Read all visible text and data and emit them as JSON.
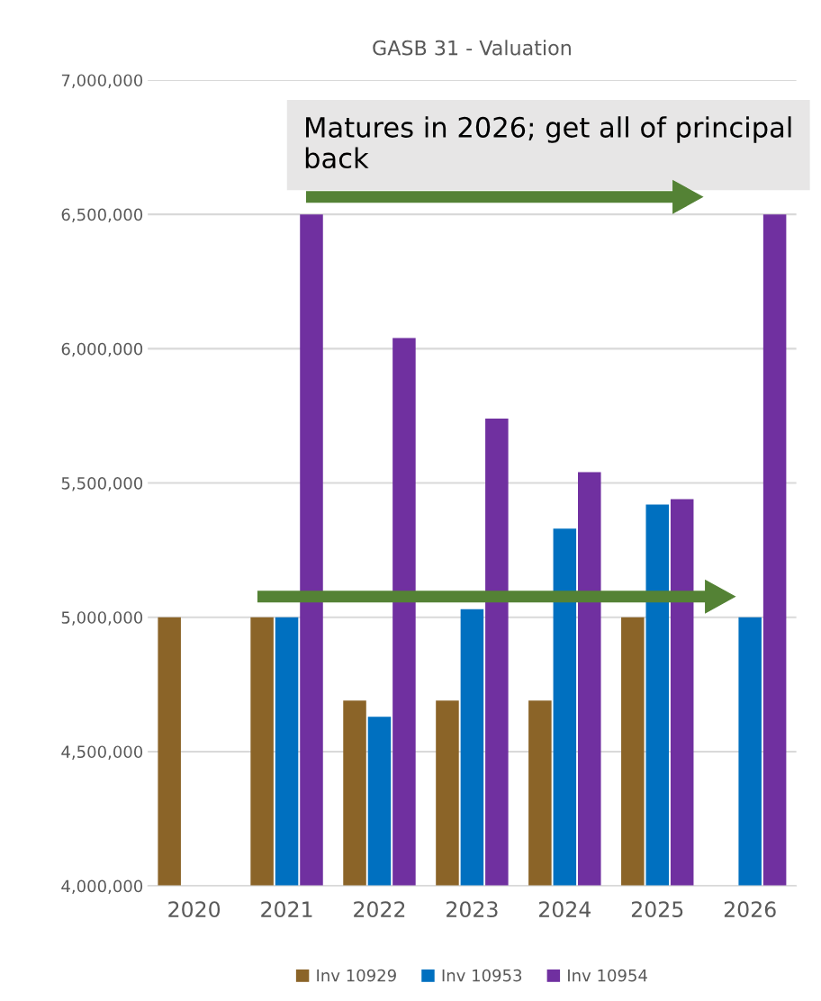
{
  "chart_data": {
    "type": "bar",
    "title": "GASB 31 - Valuation",
    "categories": [
      "2020",
      "2021",
      "2022",
      "2023",
      "2024",
      "2025",
      "2026"
    ],
    "series": [
      {
        "name": "Inv 10929",
        "color": "#8b6428",
        "values": [
          5000000,
          5000000,
          4690000,
          4690000,
          4690000,
          5000000,
          null
        ]
      },
      {
        "name": "Inv 10953",
        "color": "#0070c0",
        "values": [
          null,
          5000000,
          4630000,
          5030000,
          5330000,
          5420000,
          5000000
        ]
      },
      {
        "name": "Inv 10954",
        "color": "#7030a0",
        "values": [
          null,
          6500000,
          6040000,
          5740000,
          5540000,
          5440000,
          6500000
        ]
      }
    ],
    "ylim": [
      4000000,
      7000000
    ],
    "yticks": [
      {
        "value": 4000000,
        "label": "4,000,000"
      },
      {
        "value": 4500000,
        "label": "4,500,000"
      },
      {
        "value": 5000000,
        "label": "5,000,000"
      },
      {
        "value": 5500000,
        "label": "5,500,000"
      },
      {
        "value": 6000000,
        "label": "6,000,000"
      },
      {
        "value": 6500000,
        "label": "6,500,000"
      },
      {
        "value": 7000000,
        "label": "7,000,000"
      }
    ],
    "grid": "y",
    "legend": "bottom",
    "annotations": [
      "Matures in 2026; get all of principal back"
    ]
  }
}
